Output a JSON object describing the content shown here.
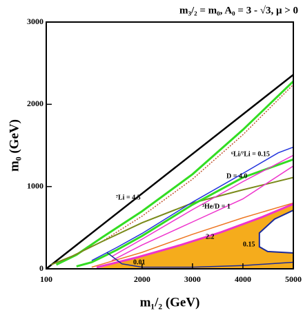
{
  "chart_data": {
    "type": "line",
    "title": "m₃/₂ = m₀, A₀ = 3 - √3,  μ > 0",
    "x_label": "m₁/₂ (GeV)",
    "y_label": "m₀ (GeV)",
    "xlim": [
      100,
      5000
    ],
    "xticks": [
      100,
      2000,
      3000,
      4000,
      5000
    ],
    "ylim": [
      0,
      3000
    ],
    "yticks": [
      0,
      1000,
      2000,
      3000
    ],
    "grid": false,
    "series": [
      {
        "color": "#f5ac1c",
        "fill": true,
        "x": [
          1099,
          1919,
          2740,
          3561,
          4382,
          5000,
          5000,
          4628,
          4327,
          4327,
          4491,
          5000,
          5000
        ],
        "values": [
          0,
          142,
          285,
          444,
          629,
          788,
          712,
          604,
          436,
          268,
          210,
          193,
          0
        ]
      },
      {
        "color": "#000000",
        "linewidth": 2.5,
        "x": [
          100,
          5000
        ],
        "values": [
          0,
          2360
        ]
      },
      {
        "color": "#33dd22",
        "linewidth": 3,
        "x": [
          300,
          700,
          1200,
          2000,
          3000,
          4000,
          5000
        ],
        "values": [
          50,
          170,
          380,
          700,
          1150,
          1690,
          2280
        ]
      },
      {
        "color": "#c0502a",
        "linewidth": 1.5,
        "dash": true,
        "x": [
          1200,
          2000,
          3000,
          4000,
          5000
        ],
        "values": [
          330,
          640,
          1090,
          1630,
          2240
        ]
      },
      {
        "color": "#7a8a1a",
        "linewidth": 2,
        "x": [
          200,
          600,
          1200,
          2000,
          3000,
          4000,
          5000
        ],
        "values": [
          50,
          150,
          330,
          560,
          800,
          960,
          1110
        ]
      },
      {
        "color": "#2233dd",
        "linewidth": 1.5,
        "x": [
          1000,
          1500,
          2000,
          3000,
          4000,
          4700,
          5000
        ],
        "values": [
          100,
          260,
          430,
          810,
          1160,
          1410,
          1480
        ]
      },
      {
        "color": "#33dd22",
        "linewidth": 3,
        "x": [
          700,
          1000,
          1500,
          2000,
          3000,
          4000,
          5000
        ],
        "values": [
          30,
          80,
          230,
          400,
          780,
          1110,
          1330
        ]
      },
      {
        "color": "#ee33cc",
        "linewidth": 1.5,
        "x": [
          1400,
          2000,
          3000,
          4000,
          5000
        ],
        "values": [
          150,
          360,
          720,
          1060,
          1380
        ]
      },
      {
        "color": "#ee33cc",
        "linewidth": 1.5,
        "x": [
          1400,
          2000,
          3000,
          4000,
          5000
        ],
        "values": [
          100,
          290,
          570,
          850,
          1250
        ]
      },
      {
        "color": "#ee7722",
        "linewidth": 1.5,
        "x": [
          1000,
          2000,
          3000,
          4000,
          5000
        ],
        "values": [
          20,
          200,
          420,
          620,
          800
        ]
      },
      {
        "color": "#ee33cc",
        "linewidth": 3,
        "x": [
          1099,
          1919,
          2740,
          3561,
          4382,
          5000
        ],
        "values": [
          17,
          142,
          285,
          444,
          629,
          788
        ]
      },
      {
        "color": "#1a2a9a",
        "linewidth": 2,
        "x": [
          5000,
          4628,
          4327,
          4327,
          4491,
          5000
        ],
        "values": [
          712,
          604,
          436,
          268,
          210,
          193
        ]
      },
      {
        "color": "#1a2a9a",
        "linewidth": 1.5,
        "x": [
          1300,
          1600,
          2000,
          3000,
          4000,
          5000
        ],
        "values": [
          200,
          60,
          20,
          20,
          40,
          80
        ]
      }
    ],
    "annotations": [
      "⁷Li = 4.3",
      "⁶Li/⁷Li = 0.15",
      "D = 4.0",
      "³He/D = 1",
      "2.2",
      "0.15",
      "0.01"
    ]
  }
}
